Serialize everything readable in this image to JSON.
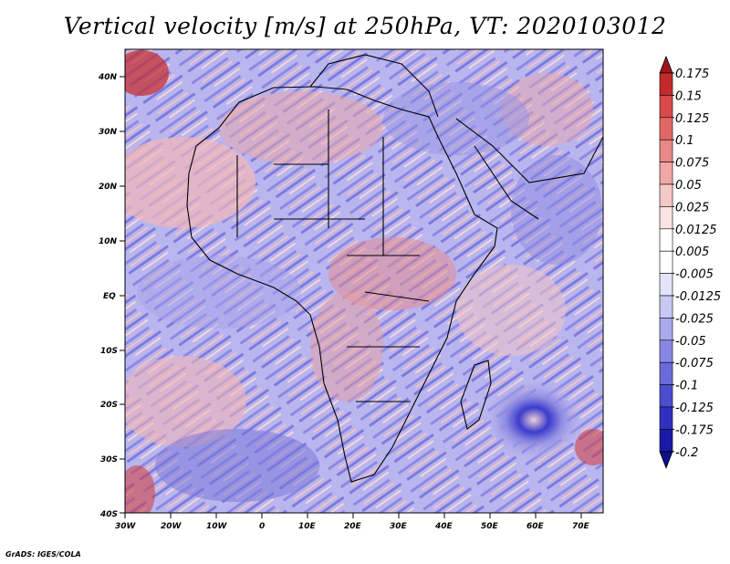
{
  "title": "Vertical velocity [m/s] at 250hPa, VT: 2020103012",
  "credit": "GrADS: IGES/COLA",
  "map": {
    "lat_labels": [
      "40N",
      "30N",
      "20N",
      "10N",
      "EQ",
      "10S",
      "20S",
      "30S",
      "40S"
    ],
    "lon_labels": [
      "30W",
      "20W",
      "10W",
      "0",
      "10E",
      "20E",
      "30E",
      "40E",
      "50E",
      "60E",
      "70E"
    ],
    "extent": {
      "lon": [
        -30,
        75
      ],
      "lat": [
        -40,
        45
      ]
    }
  },
  "colorbar": {
    "levels": [
      "0.175",
      "0.15",
      "0.125",
      "0.1",
      "0.075",
      "0.05",
      "0.025",
      "0.0125",
      "0.005",
      "-0.005",
      "-0.0125",
      "-0.025",
      "-0.05",
      "-0.075",
      "-0.1",
      "-0.125",
      "-0.175",
      "-0.2"
    ],
    "colors": [
      "#a01618",
      "#c42a2c",
      "#d84a48",
      "#e26866",
      "#e88887",
      "#efa8a6",
      "#f5c8c6",
      "#fae3e2",
      "#ffffff",
      "#ffffff",
      "#e3e3fa",
      "#c8c8f3",
      "#a9a9ec",
      "#8888e4",
      "#6a6ada",
      "#4c4ccf",
      "#3030c0",
      "#1a1aa8",
      "#0f0f8c"
    ]
  }
}
